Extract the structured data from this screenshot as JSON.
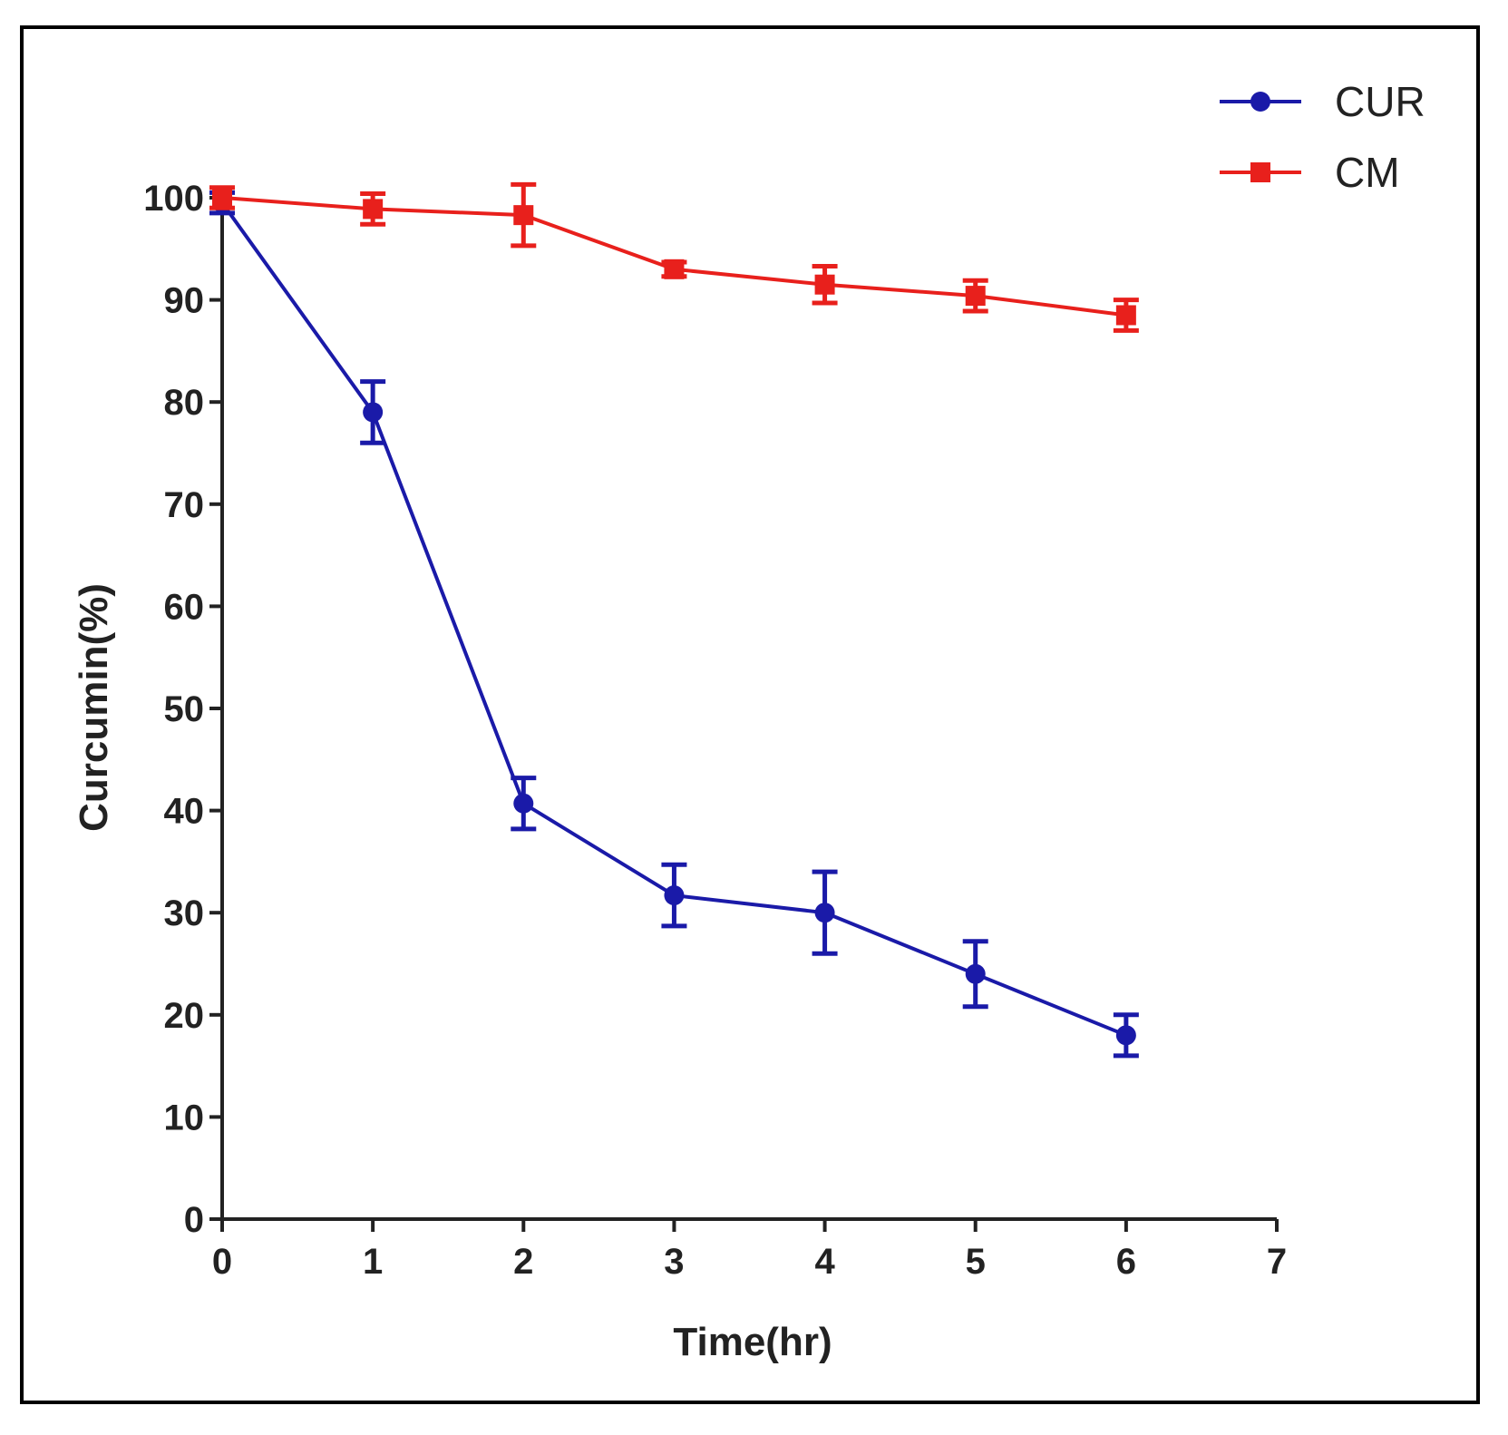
{
  "chart_data": {
    "type": "line",
    "title": "",
    "xlabel": "Time(hr)",
    "ylabel": "Curcumin(%)",
    "xlim": [
      0,
      7
    ],
    "ylim": [
      0,
      100
    ],
    "x_ticks": [
      0,
      1,
      2,
      3,
      4,
      5,
      6,
      7
    ],
    "y_ticks": [
      0,
      10,
      20,
      30,
      40,
      50,
      60,
      70,
      80,
      90,
      100
    ],
    "x_tick_labels": [
      "0",
      "1",
      "2",
      "3",
      "4",
      "5",
      "6",
      "7"
    ],
    "y_tick_labels": [
      "0",
      "10",
      "20",
      "30",
      "40",
      "50",
      "60",
      "70",
      "80",
      "90",
      "100"
    ],
    "grid": false,
    "legend_position": "top-right",
    "x": [
      0,
      1,
      2,
      3,
      4,
      5,
      6
    ],
    "series": [
      {
        "name": "CUR",
        "color": "#1a1aa8",
        "marker": "circle",
        "values": [
          99.5,
          79,
          40.7,
          31.7,
          30,
          24,
          18
        ],
        "errors": [
          1,
          3,
          2.5,
          3,
          4,
          3.2,
          2
        ]
      },
      {
        "name": "CM",
        "color": "#e8201c",
        "marker": "square",
        "values": [
          100,
          98.9,
          98.3,
          93,
          91.5,
          90.4,
          88.5
        ],
        "errors": [
          1,
          1.5,
          3,
          0.7,
          1.8,
          1.5,
          1.5
        ]
      }
    ]
  }
}
